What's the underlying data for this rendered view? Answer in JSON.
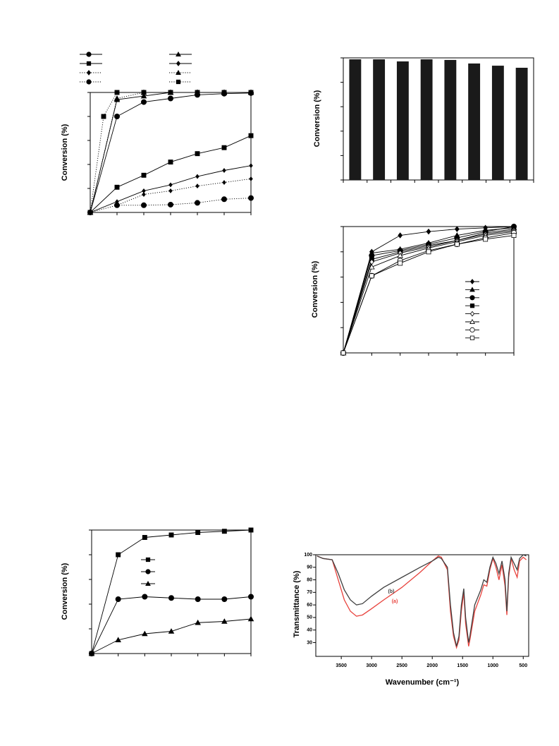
{
  "chart_data": [
    {
      "type": "line",
      "y_label": "Conversion (%)",
      "xlim": [
        0,
        6
      ],
      "ylim": [
        0,
        100
      ],
      "xticks": [
        0,
        1,
        2,
        3,
        4,
        5,
        6
      ],
      "yticks": [
        0,
        20,
        40,
        60,
        80,
        100
      ],
      "tick_labels": false,
      "x": [
        0,
        1,
        2,
        3,
        4,
        5,
        6
      ],
      "series": [
        {
          "color": "#000000",
          "marker": "circle",
          "filled": true,
          "dotted": false,
          "values": [
            0,
            80,
            92,
            95,
            98,
            99,
            99.5
          ]
        },
        {
          "color": "#000000",
          "marker": "square",
          "filled": true,
          "dotted": false,
          "values": [
            0,
            21,
            31,
            42,
            49,
            54,
            64
          ]
        },
        {
          "color": "#000000",
          "marker": "diamond",
          "filled": true,
          "dotted": true,
          "x": [
            0,
            1,
            2,
            3,
            4,
            5,
            6
          ],
          "values": [
            0,
            6,
            15,
            18,
            22,
            25,
            28
          ]
        },
        {
          "color": "#000000",
          "marker": "circle",
          "filled": true,
          "dotted": true,
          "x": [
            1,
            2,
            3,
            4,
            5,
            6
          ],
          "values": [
            6,
            6,
            6.5,
            8,
            11,
            12
          ]
        },
        {
          "color": "#000000",
          "marker": "triangle",
          "filled": true,
          "dotted": false,
          "values": [
            0,
            94,
            97,
            100,
            100,
            100,
            100
          ]
        },
        {
          "color": "#000000",
          "marker": "diamond",
          "filled": true,
          "dotted": false,
          "values": [
            0,
            9,
            18,
            23,
            30,
            35,
            39
          ]
        },
        {
          "color": "#000000",
          "marker": "triangle",
          "filled": true,
          "dotted": true,
          "x": [
            0,
            1,
            2,
            3,
            4,
            5,
            6
          ],
          "values": [
            0,
            95,
            100,
            100,
            100,
            100,
            100
          ]
        },
        {
          "color": "#000000",
          "marker": "square",
          "filled": true,
          "dotted": true,
          "x": [
            0,
            0.5,
            1,
            2,
            3,
            4,
            5,
            6
          ],
          "values": [
            0,
            80,
            100,
            100,
            100,
            100,
            100,
            100
          ]
        }
      ]
    },
    {
      "type": "bar",
      "y_label": "Conversion (%)",
      "ylim": [
        0,
        100
      ],
      "yticks": [
        0,
        20,
        40,
        60,
        80,
        100
      ],
      "tick_labels": false,
      "categories": [
        null,
        null,
        null,
        null,
        null,
        null,
        null,
        null
      ],
      "color": "#1a1a1a",
      "values": [
        98.8,
        98.8,
        97.1,
        98.8,
        98.3,
        95.4,
        93.6,
        91.9
      ]
    },
    {
      "type": "line",
      "y_label": "Conversion (%)",
      "xlim": [
        0,
        6
      ],
      "ylim": [
        0,
        100
      ],
      "xticks": [
        0,
        1,
        2,
        3,
        4,
        5,
        6
      ],
      "yticks": [
        0,
        20,
        40,
        60,
        80,
        100
      ],
      "tick_labels": false,
      "x": [
        0,
        1,
        2,
        3,
        4,
        5,
        6
      ],
      "series": [
        {
          "color": "#000000",
          "marker": "diamond",
          "filled": true,
          "dotted": false,
          "values": [
            0,
            80,
            93,
            96,
            98,
            99,
            100
          ]
        },
        {
          "color": "#000000",
          "marker": "triangle",
          "filled": true,
          "dotted": false,
          "values": [
            0,
            79,
            82,
            87,
            93,
            97,
            99
          ]
        },
        {
          "color": "#000000",
          "marker": "circle",
          "filled": true,
          "dotted": false,
          "values": [
            0,
            77,
            81,
            86,
            91,
            96,
            100
          ]
        },
        {
          "color": "#000000",
          "marker": "square",
          "filled": true,
          "dotted": false,
          "values": [
            0,
            74,
            80,
            85,
            89,
            95,
            98
          ]
        },
        {
          "color": "#000000",
          "marker": "diamond",
          "filled": false,
          "dotted": false,
          "values": [
            0,
            72,
            79,
            84,
            89,
            94,
            97
          ]
        },
        {
          "color": "#000000",
          "marker": "triangle",
          "filled": false,
          "dotted": false,
          "values": [
            0,
            68,
            77,
            83,
            88,
            93,
            96
          ]
        },
        {
          "color": "#000000",
          "marker": "circle",
          "filled": false,
          "dotted": false,
          "values": [
            0,
            61,
            73,
            81,
            86,
            91,
            95
          ]
        },
        {
          "color": "#000000",
          "marker": "square",
          "filled": false,
          "dotted": false,
          "values": [
            0,
            61,
            71,
            80,
            86,
            90,
            93
          ]
        }
      ]
    },
    {
      "type": "line",
      "y_label": "Conversion (%)",
      "xlim": [
        0,
        6
      ],
      "ylim": [
        0,
        100
      ],
      "xticks": [
        0,
        1,
        2,
        3,
        4,
        5,
        6
      ],
      "yticks": [
        0,
        20,
        40,
        60,
        80,
        100
      ],
      "tick_labels": false,
      "x": [
        0,
        1,
        2,
        3,
        4,
        5,
        6
      ],
      "series": [
        {
          "color": "#000000",
          "marker": "square",
          "filled": true,
          "dotted": false,
          "values": [
            0,
            80,
            94,
            96,
            98,
            99,
            100
          ]
        },
        {
          "color": "#000000",
          "marker": "circle",
          "filled": true,
          "dotted": false,
          "values": [
            0,
            44,
            46,
            45,
            44,
            44,
            46
          ]
        },
        {
          "color": "#000000",
          "marker": "triangle",
          "filled": true,
          "dotted": false,
          "values": [
            0,
            11,
            16,
            18,
            25,
            26,
            28
          ]
        }
      ]
    },
    {
      "type": "line",
      "x_label": "Wavenumber (cm⁻¹)",
      "y_label": "Transmittance (%)",
      "xlim": [
        3920,
        410
      ],
      "ylim": [
        19,
        100
      ],
      "xticks": [
        3500,
        3000,
        2500,
        2000,
        1500,
        1000,
        500
      ],
      "yticks": [
        30,
        40,
        50,
        60,
        70,
        80,
        90,
        100
      ],
      "tick_labels": true,
      "x": [
        3900,
        3800,
        3650,
        3550,
        3450,
        3350,
        3250,
        3150,
        3000,
        2800,
        2500,
        2200,
        2000,
        1900,
        1850,
        1750,
        1700,
        1650,
        1600,
        1560,
        1520,
        1480,
        1450,
        1400,
        1380,
        1300,
        1200,
        1150,
        1100,
        1050,
        1000,
        950,
        900,
        850,
        800,
        770,
        740,
        700,
        650,
        600,
        560,
        500,
        450
      ],
      "series": [
        {
          "name": "(a)",
          "color": "#e8423c",
          "values": [
            99,
            97,
            96,
            80,
            64,
            55,
            51,
            52,
            57,
            64,
            74,
            86,
            95,
            99,
            98,
            88,
            55,
            35,
            26,
            32,
            55,
            70,
            45,
            27,
            32,
            55,
            68,
            76,
            75,
            88,
            97,
            90,
            80,
            92,
            75,
            52,
            82,
            97,
            88,
            82,
            95,
            98,
            96
          ]
        },
        {
          "name": "(b)",
          "color": "#404040",
          "values": [
            99,
            97,
            96,
            85,
            72,
            64,
            60,
            61,
            67,
            74,
            82,
            90,
            95,
            98,
            97,
            90,
            60,
            38,
            27,
            35,
            60,
            73,
            50,
            30,
            35,
            60,
            72,
            80,
            78,
            90,
            98,
            93,
            85,
            95,
            80,
            55,
            85,
            98,
            93,
            88,
            97,
            100,
            99
          ]
        }
      ]
    }
  ]
}
